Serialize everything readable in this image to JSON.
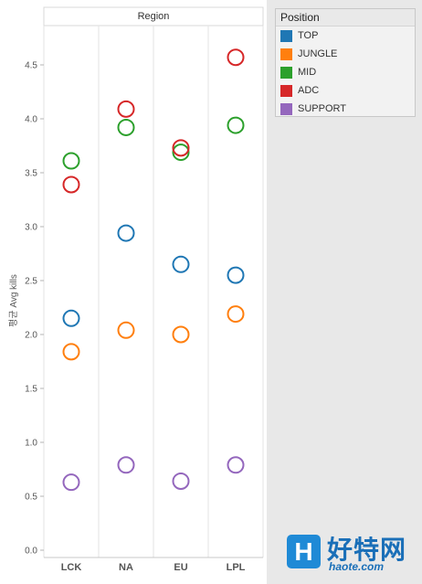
{
  "chart_data": {
    "type": "scatter",
    "title": "Region",
    "ylabel": "평균 Avg kills",
    "xlabel": "",
    "categories": [
      "LCK",
      "NA",
      "EU",
      "LPL"
    ],
    "ylim": [
      0,
      4.8
    ],
    "yticks": [
      "0.0",
      "0.5",
      "1.0",
      "1.5",
      "2.0",
      "2.5",
      "3.0",
      "3.5",
      "4.0",
      "4.5"
    ],
    "legend_position": "right",
    "series": [
      {
        "name": "TOP",
        "color": "#1f77b4",
        "values": [
          2.15,
          2.94,
          2.65,
          2.55
        ]
      },
      {
        "name": "JUNGLE",
        "color": "#ff7f0e",
        "values": [
          1.84,
          2.04,
          2.0,
          2.19
        ]
      },
      {
        "name": "MID",
        "color": "#2ca02c",
        "values": [
          3.61,
          3.92,
          3.69,
          3.94
        ]
      },
      {
        "name": "ADC",
        "color": "#d62728",
        "values": [
          3.39,
          4.09,
          3.73,
          4.57
        ]
      },
      {
        "name": "SUPPORT",
        "color": "#9467bd",
        "values": [
          0.63,
          0.79,
          0.64,
          0.79
        ]
      }
    ]
  },
  "legend": {
    "title": "Position",
    "items": [
      "TOP",
      "JUNGLE",
      "MID",
      "ADC",
      "SUPPORT"
    ]
  },
  "watermark": {
    "title": "好特网",
    "site": "haote.com",
    "badge": "H"
  }
}
